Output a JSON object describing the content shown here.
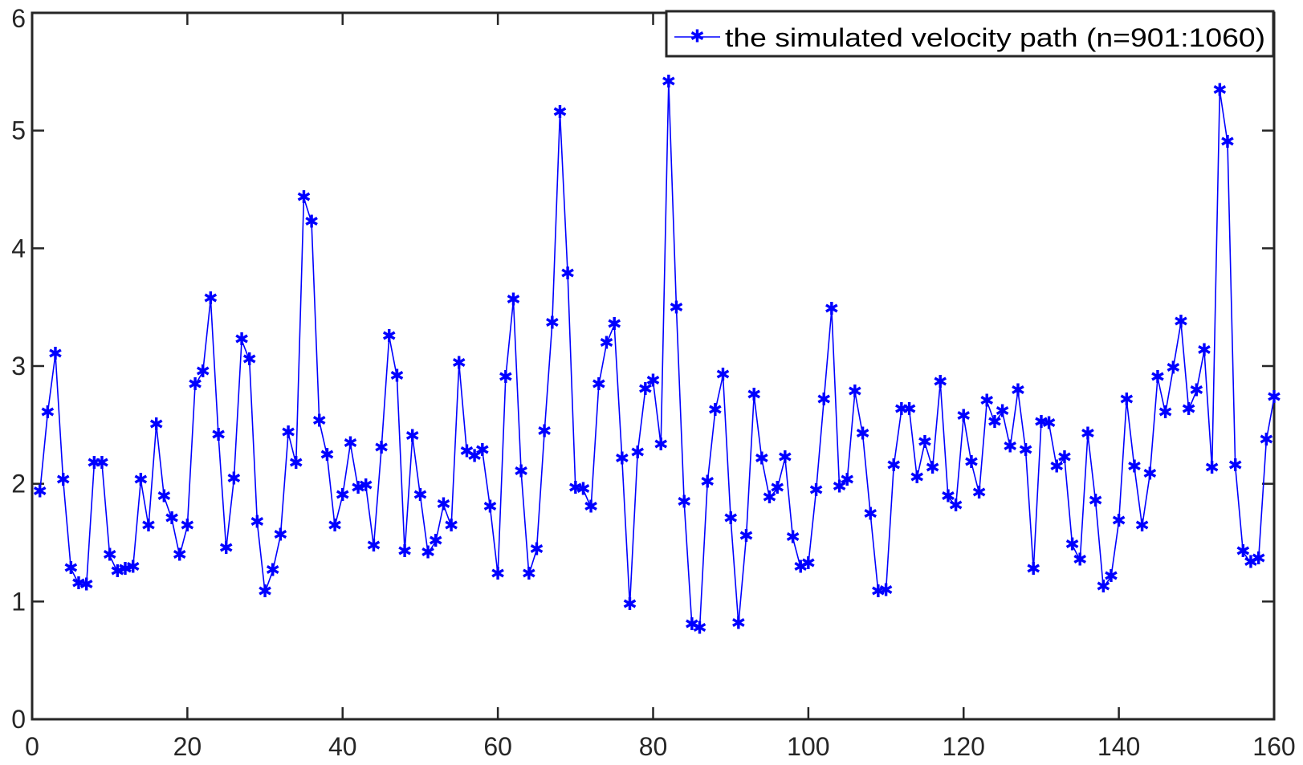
{
  "chart_data": {
    "type": "line",
    "title": "",
    "xlabel": "",
    "ylabel": "",
    "xlim": [
      0,
      160
    ],
    "ylim": [
      0,
      6
    ],
    "grid": false,
    "legend_position": "top-right",
    "x_ticks": [
      {
        "value": 0,
        "label": "0"
      },
      {
        "value": 20,
        "label": "20"
      },
      {
        "value": 40,
        "label": "40"
      },
      {
        "value": 60,
        "label": "60"
      },
      {
        "value": 80,
        "label": "80"
      },
      {
        "value": 100,
        "label": "100"
      },
      {
        "value": 120,
        "label": "120"
      },
      {
        "value": 140,
        "label": "140"
      },
      {
        "value": 160,
        "label": "160"
      }
    ],
    "y_ticks": [
      {
        "value": 0,
        "label": "0"
      },
      {
        "value": 1,
        "label": "1"
      },
      {
        "value": 2,
        "label": "2"
      },
      {
        "value": 3,
        "label": "3"
      },
      {
        "value": 4,
        "label": "4"
      },
      {
        "value": 5,
        "label": "5"
      },
      {
        "value": 6,
        "label": "6"
      }
    ],
    "series": [
      {
        "name": "the simulated velocity path (n=901:1060)",
        "color": "#0000ff",
        "marker": "asterisk",
        "x": [
          1,
          2,
          3,
          4,
          5,
          6,
          7,
          8,
          9,
          10,
          11,
          12,
          13,
          14,
          15,
          16,
          17,
          18,
          19,
          20,
          21,
          22,
          23,
          24,
          25,
          26,
          27,
          28,
          29,
          30,
          31,
          32,
          33,
          34,
          35,
          36,
          37,
          38,
          39,
          40,
          41,
          42,
          43,
          44,
          45,
          46,
          47,
          48,
          49,
          50,
          51,
          52,
          53,
          54,
          55,
          56,
          57,
          58,
          59,
          60,
          61,
          62,
          63,
          64,
          65,
          66,
          67,
          68,
          69,
          70,
          71,
          72,
          73,
          74,
          75,
          76,
          77,
          78,
          79,
          80,
          81,
          82,
          83,
          84,
          85,
          86,
          87,
          88,
          89,
          90,
          91,
          92,
          93,
          94,
          95,
          96,
          97,
          98,
          99,
          100,
          101,
          102,
          103,
          104,
          105,
          106,
          107,
          108,
          109,
          110,
          111,
          112,
          113,
          114,
          115,
          116,
          117,
          118,
          119,
          120,
          121,
          122,
          123,
          124,
          125,
          126,
          127,
          128,
          129,
          130,
          131,
          132,
          133,
          134,
          135,
          136,
          137,
          138,
          139,
          140,
          141,
          142,
          143,
          144,
          145,
          146,
          147,
          148,
          149,
          150,
          151,
          152,
          153,
          154,
          155,
          156,
          157,
          158,
          159,
          160
        ],
        "values": [
          1.93,
          2.6,
          3.1,
          2.03,
          1.28,
          1.15,
          1.14,
          2.17,
          2.17,
          1.39,
          1.25,
          1.27,
          1.29,
          2.03,
          1.64,
          2.5,
          1.89,
          1.7,
          1.39,
          1.64,
          2.84,
          2.95,
          3.57,
          2.41,
          1.45,
          2.04,
          3.22,
          3.05,
          1.67,
          1.08,
          1.26,
          1.56,
          2.43,
          2.17,
          4.43,
          4.22,
          2.53,
          2.24,
          1.64,
          1.9,
          2.34,
          1.96,
          1.98,
          1.47,
          2.3,
          3.25,
          2.91,
          1.42,
          2.4,
          1.9,
          1.41,
          1.51,
          1.82,
          1.64,
          3.02,
          2.27,
          2.23,
          2.28,
          1.8,
          1.23,
          2.9,
          3.56,
          2.1,
          1.23,
          1.44,
          2.44,
          3.36,
          5.15,
          3.78,
          1.96,
          1.95,
          1.8,
          2.84,
          3.19,
          3.35,
          2.21,
          0.97,
          2.26,
          2.8,
          2.87,
          2.33,
          5.41,
          3.49,
          1.84,
          0.8,
          0.77,
          2.01,
          2.62,
          2.92,
          1.7,
          0.81,
          1.55,
          2.75,
          2.21,
          1.88,
          1.96,
          2.22,
          1.54,
          1.29,
          1.32,
          1.94,
          2.71,
          3.48,
          1.97,
          2.03,
          2.78,
          2.42,
          1.74,
          1.08,
          1.09,
          2.15,
          2.63,
          2.63,
          2.05,
          2.35,
          2.13,
          2.86,
          1.89,
          1.81,
          2.57,
          2.18,
          1.92,
          2.7,
          2.52,
          2.61,
          2.31,
          2.79,
          2.28,
          1.27,
          2.52,
          2.51,
          2.14,
          2.22,
          1.48,
          1.35,
          2.42,
          1.85,
          1.12,
          1.21,
          1.68,
          2.71,
          2.14,
          1.64,
          2.08,
          2.9,
          2.6,
          2.98,
          3.37,
          2.63,
          2.79,
          3.13,
          2.13,
          5.34,
          4.9,
          2.15,
          1.42,
          1.33,
          1.36,
          2.37,
          2.73
        ]
      }
    ]
  }
}
